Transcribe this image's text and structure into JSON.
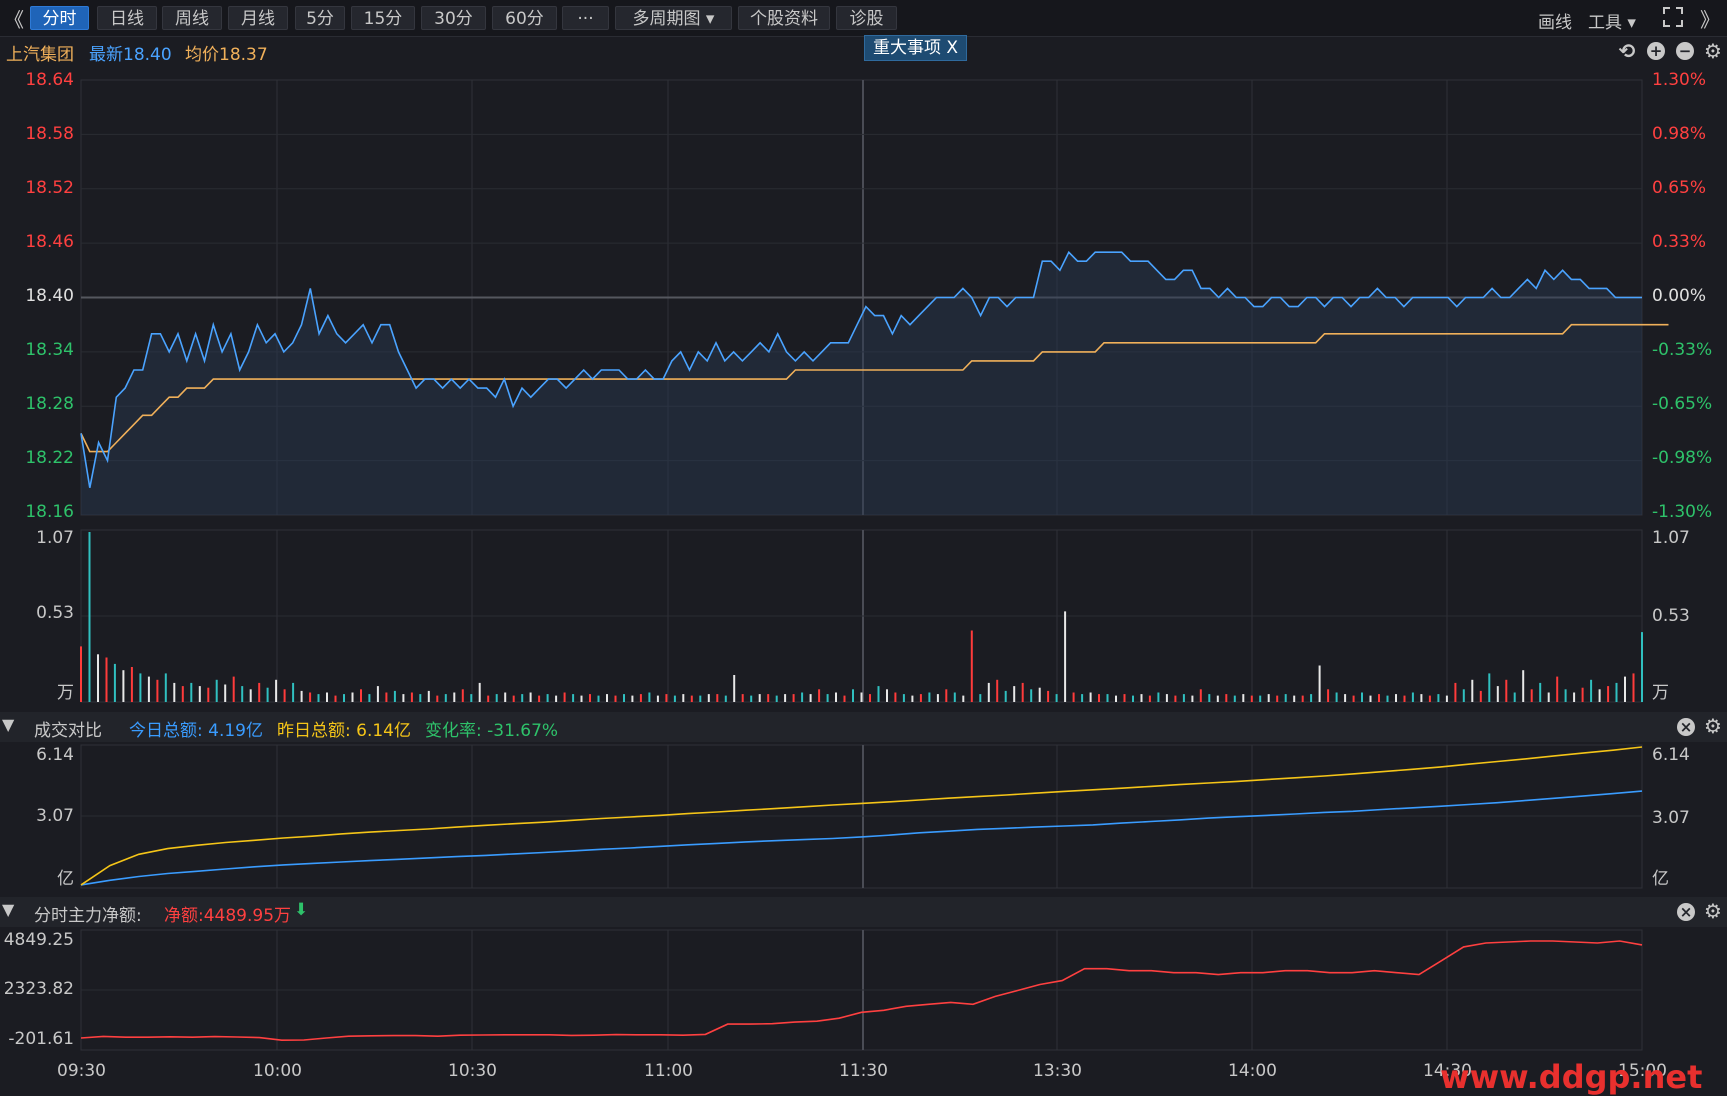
{
  "toolbar": {
    "left_chevron": "《",
    "right_chevron": "》",
    "tabs": [
      "分时",
      "日线",
      "周线",
      "月线",
      "5分",
      "15分",
      "30分",
      "60分",
      "···",
      "多周期图 ▾",
      "个股资料",
      "诊股"
    ],
    "draw_label": "画线",
    "tools_label": "工具 ▾"
  },
  "info": {
    "stock_name": "上汽集团",
    "latest_label": "最新18.40",
    "avg_label": "均价18.37",
    "event_badge": "重大事项  X"
  },
  "price_axis": {
    "left_ticks": [
      "18.64",
      "18.58",
      "18.52",
      "18.46",
      "18.40",
      "18.34",
      "18.28",
      "18.22",
      "18.16"
    ],
    "right_ticks": [
      "1.30%",
      "0.98%",
      "0.65%",
      "0.33%",
      "0.00%",
      "-0.33%",
      "-0.65%",
      "-0.98%",
      "-1.30%"
    ]
  },
  "volume_axis": {
    "ticks": [
      "1.07",
      "0.53",
      "万"
    ]
  },
  "turnover_panel": {
    "title": "成交对比",
    "today_label": "今日总额: 4.19亿",
    "yesterday_label": "昨日总额: 6.14亿",
    "change_label": "变化率: -31.67%",
    "ticks": [
      "6.14",
      "3.07",
      "亿"
    ]
  },
  "netflow_panel": {
    "title": "分时主力净额:",
    "net_label": "净额:4489.95万",
    "ticks": [
      "4849.25",
      "2323.82",
      "-201.61"
    ]
  },
  "time_axis": [
    "09:30",
    "10:00",
    "10:30",
    "11:00",
    "11:30",
    "13:30",
    "14:00",
    "14:30",
    "15:00"
  ],
  "watermark": "www.ddgp.net",
  "colors": {
    "price_line": "#4aa3ff",
    "avg_line": "#f0b05a",
    "up": "#ff3b3b",
    "down": "#2ec26a",
    "today_turnover": "#3a9cff",
    "yesterday_turnover": "#f5c518",
    "netflow": "#ff4040"
  },
  "chart_data": {
    "type": "line",
    "price": {
      "prev_close": 18.4,
      "ylim": [
        18.16,
        18.64
      ],
      "series": [
        {
          "name": "最新",
          "values": [
            18.25,
            18.19,
            18.24,
            18.22,
            18.29,
            18.3,
            18.32,
            18.32,
            18.36,
            18.36,
            18.34,
            18.36,
            18.33,
            18.36,
            18.33,
            18.37,
            18.34,
            18.36,
            18.32,
            18.34,
            18.37,
            18.35,
            18.36,
            18.34,
            18.35,
            18.37,
            18.41,
            18.36,
            18.38,
            18.36,
            18.35,
            18.36,
            18.37,
            18.35,
            18.37,
            18.37,
            18.34,
            18.32,
            18.3,
            18.31,
            18.31,
            18.3,
            18.31,
            18.3,
            18.31,
            18.3,
            18.3,
            18.29,
            18.31,
            18.28,
            18.3,
            18.29,
            18.3,
            18.31,
            18.31,
            18.3,
            18.31,
            18.32,
            18.31,
            18.32,
            18.32,
            18.32,
            18.31,
            18.31,
            18.32,
            18.31,
            18.31,
            18.33,
            18.34,
            18.32,
            18.34,
            18.33,
            18.35,
            18.33,
            18.34,
            18.33,
            18.34,
            18.35,
            18.34,
            18.36,
            18.34,
            18.33,
            18.34,
            18.33,
            18.34,
            18.35,
            18.35,
            18.35,
            18.37,
            18.39,
            18.38,
            18.38,
            18.36,
            18.38,
            18.37,
            18.38,
            18.39,
            18.4,
            18.4,
            18.4,
            18.41,
            18.4,
            18.38,
            18.4,
            18.4,
            18.39,
            18.4,
            18.4,
            18.4,
            18.44,
            18.44,
            18.43,
            18.45,
            18.44,
            18.44,
            18.45,
            18.45,
            18.45,
            18.45,
            18.44,
            18.44,
            18.44,
            18.43,
            18.42,
            18.42,
            18.43,
            18.43,
            18.41,
            18.41,
            18.4,
            18.41,
            18.4,
            18.4,
            18.39,
            18.39,
            18.4,
            18.4,
            18.39,
            18.39,
            18.4,
            18.4,
            18.39,
            18.4,
            18.4,
            18.39,
            18.4,
            18.4,
            18.41,
            18.4,
            18.4,
            18.39,
            18.4,
            18.4,
            18.4,
            18.4,
            18.4,
            18.39,
            18.4,
            18.4,
            18.4,
            18.41,
            18.4,
            18.4,
            18.41,
            18.42,
            18.41,
            18.43,
            18.42,
            18.43,
            18.42,
            18.42,
            18.41,
            18.41,
            18.41,
            18.4,
            18.4,
            18.4,
            18.4
          ]
        },
        {
          "name": "均价",
          "values": [
            18.25,
            18.23,
            18.23,
            18.23,
            18.24,
            18.25,
            18.26,
            18.27,
            18.27,
            18.28,
            18.29,
            18.29,
            18.3,
            18.3,
            18.3,
            18.31,
            18.31,
            18.31,
            18.31,
            18.31,
            18.31,
            18.31,
            18.31,
            18.31,
            18.31,
            18.31,
            18.31,
            18.31,
            18.31,
            18.31,
            18.31,
            18.31,
            18.31,
            18.31,
            18.31,
            18.31,
            18.31,
            18.31,
            18.31,
            18.31,
            18.31,
            18.31,
            18.31,
            18.31,
            18.31,
            18.31,
            18.31,
            18.31,
            18.31,
            18.31,
            18.31,
            18.31,
            18.31,
            18.31,
            18.31,
            18.31,
            18.31,
            18.31,
            18.31,
            18.31,
            18.31,
            18.31,
            18.31,
            18.31,
            18.31,
            18.31,
            18.31,
            18.31,
            18.31,
            18.31,
            18.31,
            18.31,
            18.31,
            18.31,
            18.31,
            18.31,
            18.31,
            18.31,
            18.31,
            18.31,
            18.31,
            18.32,
            18.32,
            18.32,
            18.32,
            18.32,
            18.32,
            18.32,
            18.32,
            18.32,
            18.32,
            18.32,
            18.32,
            18.32,
            18.32,
            18.32,
            18.32,
            18.32,
            18.32,
            18.32,
            18.32,
            18.33,
            18.33,
            18.33,
            18.33,
            18.33,
            18.33,
            18.33,
            18.33,
            18.34,
            18.34,
            18.34,
            18.34,
            18.34,
            18.34,
            18.34,
            18.35,
            18.35,
            18.35,
            18.35,
            18.35,
            18.35,
            18.35,
            18.35,
            18.35,
            18.35,
            18.35,
            18.35,
            18.35,
            18.35,
            18.35,
            18.35,
            18.35,
            18.35,
            18.35,
            18.35,
            18.35,
            18.35,
            18.35,
            18.35,
            18.35,
            18.36,
            18.36,
            18.36,
            18.36,
            18.36,
            18.36,
            18.36,
            18.36,
            18.36,
            18.36,
            18.36,
            18.36,
            18.36,
            18.36,
            18.36,
            18.36,
            18.36,
            18.36,
            18.36,
            18.36,
            18.36,
            18.36,
            18.36,
            18.36,
            18.36,
            18.36,
            18.36,
            18.36,
            18.37,
            18.37,
            18.37,
            18.37,
            18.37,
            18.37,
            18.37,
            18.37,
            18.37,
            18.37,
            18.37,
            18.37
          ]
        }
      ]
    },
    "volume": {
      "ylim": [
        0,
        1.07
      ],
      "values": [
        0.35,
        1.07,
        0.3,
        0.28,
        0.24,
        0.2,
        0.22,
        0.18,
        0.16,
        0.14,
        0.18,
        0.12,
        0.1,
        0.12,
        0.1,
        0.09,
        0.14,
        0.11,
        0.16,
        0.1,
        0.08,
        0.12,
        0.09,
        0.14,
        0.08,
        0.12,
        0.07,
        0.06,
        0.05,
        0.06,
        0.04,
        0.05,
        0.06,
        0.08,
        0.05,
        0.1,
        0.06,
        0.07,
        0.05,
        0.06,
        0.05,
        0.07,
        0.04,
        0.05,
        0.06,
        0.08,
        0.05,
        0.12,
        0.04,
        0.05,
        0.06,
        0.04,
        0.05,
        0.06,
        0.04,
        0.05,
        0.04,
        0.06,
        0.05,
        0.04,
        0.05,
        0.04,
        0.05,
        0.04,
        0.05,
        0.04,
        0.05,
        0.06,
        0.04,
        0.05,
        0.04,
        0.05,
        0.04,
        0.04,
        0.05,
        0.05,
        0.04,
        0.17,
        0.05,
        0.04,
        0.05,
        0.05,
        0.04,
        0.05,
        0.05,
        0.06,
        0.05,
        0.08,
        0.05,
        0.06,
        0.04,
        0.08,
        0.06,
        0.05,
        0.1,
        0.08,
        0.06,
        0.05,
        0.04,
        0.05,
        0.06,
        0.05,
        0.08,
        0.06,
        0.04,
        0.45,
        0.05,
        0.12,
        0.14,
        0.07,
        0.1,
        0.12,
        0.08,
        0.09,
        0.07,
        0.05,
        0.57,
        0.06,
        0.05,
        0.06,
        0.05,
        0.05,
        0.04,
        0.05,
        0.04,
        0.05,
        0.04,
        0.06,
        0.05,
        0.04,
        0.05,
        0.04,
        0.08,
        0.05,
        0.04,
        0.05,
        0.04,
        0.05,
        0.04,
        0.04,
        0.05,
        0.04,
        0.05,
        0.04,
        0.04,
        0.05,
        0.23,
        0.08,
        0.06,
        0.05,
        0.04,
        0.06,
        0.04,
        0.05,
        0.04,
        0.05,
        0.04,
        0.06,
        0.05,
        0.04,
        0.05,
        0.04,
        0.12,
        0.08,
        0.14,
        0.07,
        0.18,
        0.1,
        0.14,
        0.06,
        0.2,
        0.08,
        0.12,
        0.06,
        0.16,
        0.08,
        0.06,
        0.09,
        0.14,
        0.08,
        0.1,
        0.12,
        0.16,
        0.18,
        0.44
      ]
    },
    "turnover": {
      "ylim": [
        0,
        6.14
      ],
      "series": [
        {
          "name": "今日总额",
          "values": [
            0.05,
            0.25,
            0.42,
            0.55,
            0.65,
            0.75,
            0.85,
            0.93,
            1.0,
            1.06,
            1.12,
            1.18,
            1.24,
            1.3,
            1.35,
            1.42,
            1.48,
            1.55,
            1.62,
            1.68,
            1.75,
            1.82,
            1.88,
            1.95,
            2.0,
            2.05,
            2.1,
            2.17,
            2.25,
            2.35,
            2.42,
            2.5,
            2.55,
            2.6,
            2.65,
            2.7,
            2.78,
            2.85,
            2.92,
            3.0,
            3.06,
            3.12,
            3.18,
            3.25,
            3.3,
            3.38,
            3.45,
            3.52,
            3.6,
            3.68,
            3.78,
            3.88,
            3.98,
            4.08,
            4.19
          ]
        },
        {
          "name": "昨日总额",
          "values": [
            0.05,
            0.9,
            1.4,
            1.65,
            1.8,
            1.92,
            2.02,
            2.12,
            2.2,
            2.3,
            2.38,
            2.45,
            2.52,
            2.6,
            2.68,
            2.75,
            2.82,
            2.9,
            2.98,
            3.05,
            3.12,
            3.2,
            3.27,
            3.35,
            3.42,
            3.5,
            3.58,
            3.65,
            3.72,
            3.8,
            3.88,
            3.95,
            4.02,
            4.1,
            4.18,
            4.25,
            4.32,
            4.4,
            4.48,
            4.55,
            4.62,
            4.7,
            4.78,
            4.86,
            4.95,
            5.05,
            5.15,
            5.25,
            5.38,
            5.5,
            5.62,
            5.75,
            5.88,
            6.0,
            6.14
          ]
        }
      ]
    },
    "netflow": {
      "ylim": [
        -201.61,
        4849.25
      ],
      "values": [
        -100,
        -20,
        -60,
        -60,
        -40,
        -60,
        -30,
        -50,
        -80,
        -210,
        -200,
        -100,
        -10,
        10,
        20,
        20,
        -10,
        40,
        50,
        60,
        60,
        60,
        30,
        40,
        70,
        60,
        60,
        40,
        80,
        600,
        600,
        620,
        700,
        750,
        900,
        1200,
        1300,
        1500,
        1600,
        1700,
        1600,
        2000,
        2300,
        2600,
        2800,
        3400,
        3400,
        3300,
        3300,
        3200,
        3200,
        3100,
        3200,
        3200,
        3300,
        3300,
        3200,
        3200,
        3300,
        3200,
        3100,
        3800,
        4500,
        4700,
        4750,
        4800,
        4800,
        4750,
        4700,
        4800,
        4600
      ]
    }
  }
}
